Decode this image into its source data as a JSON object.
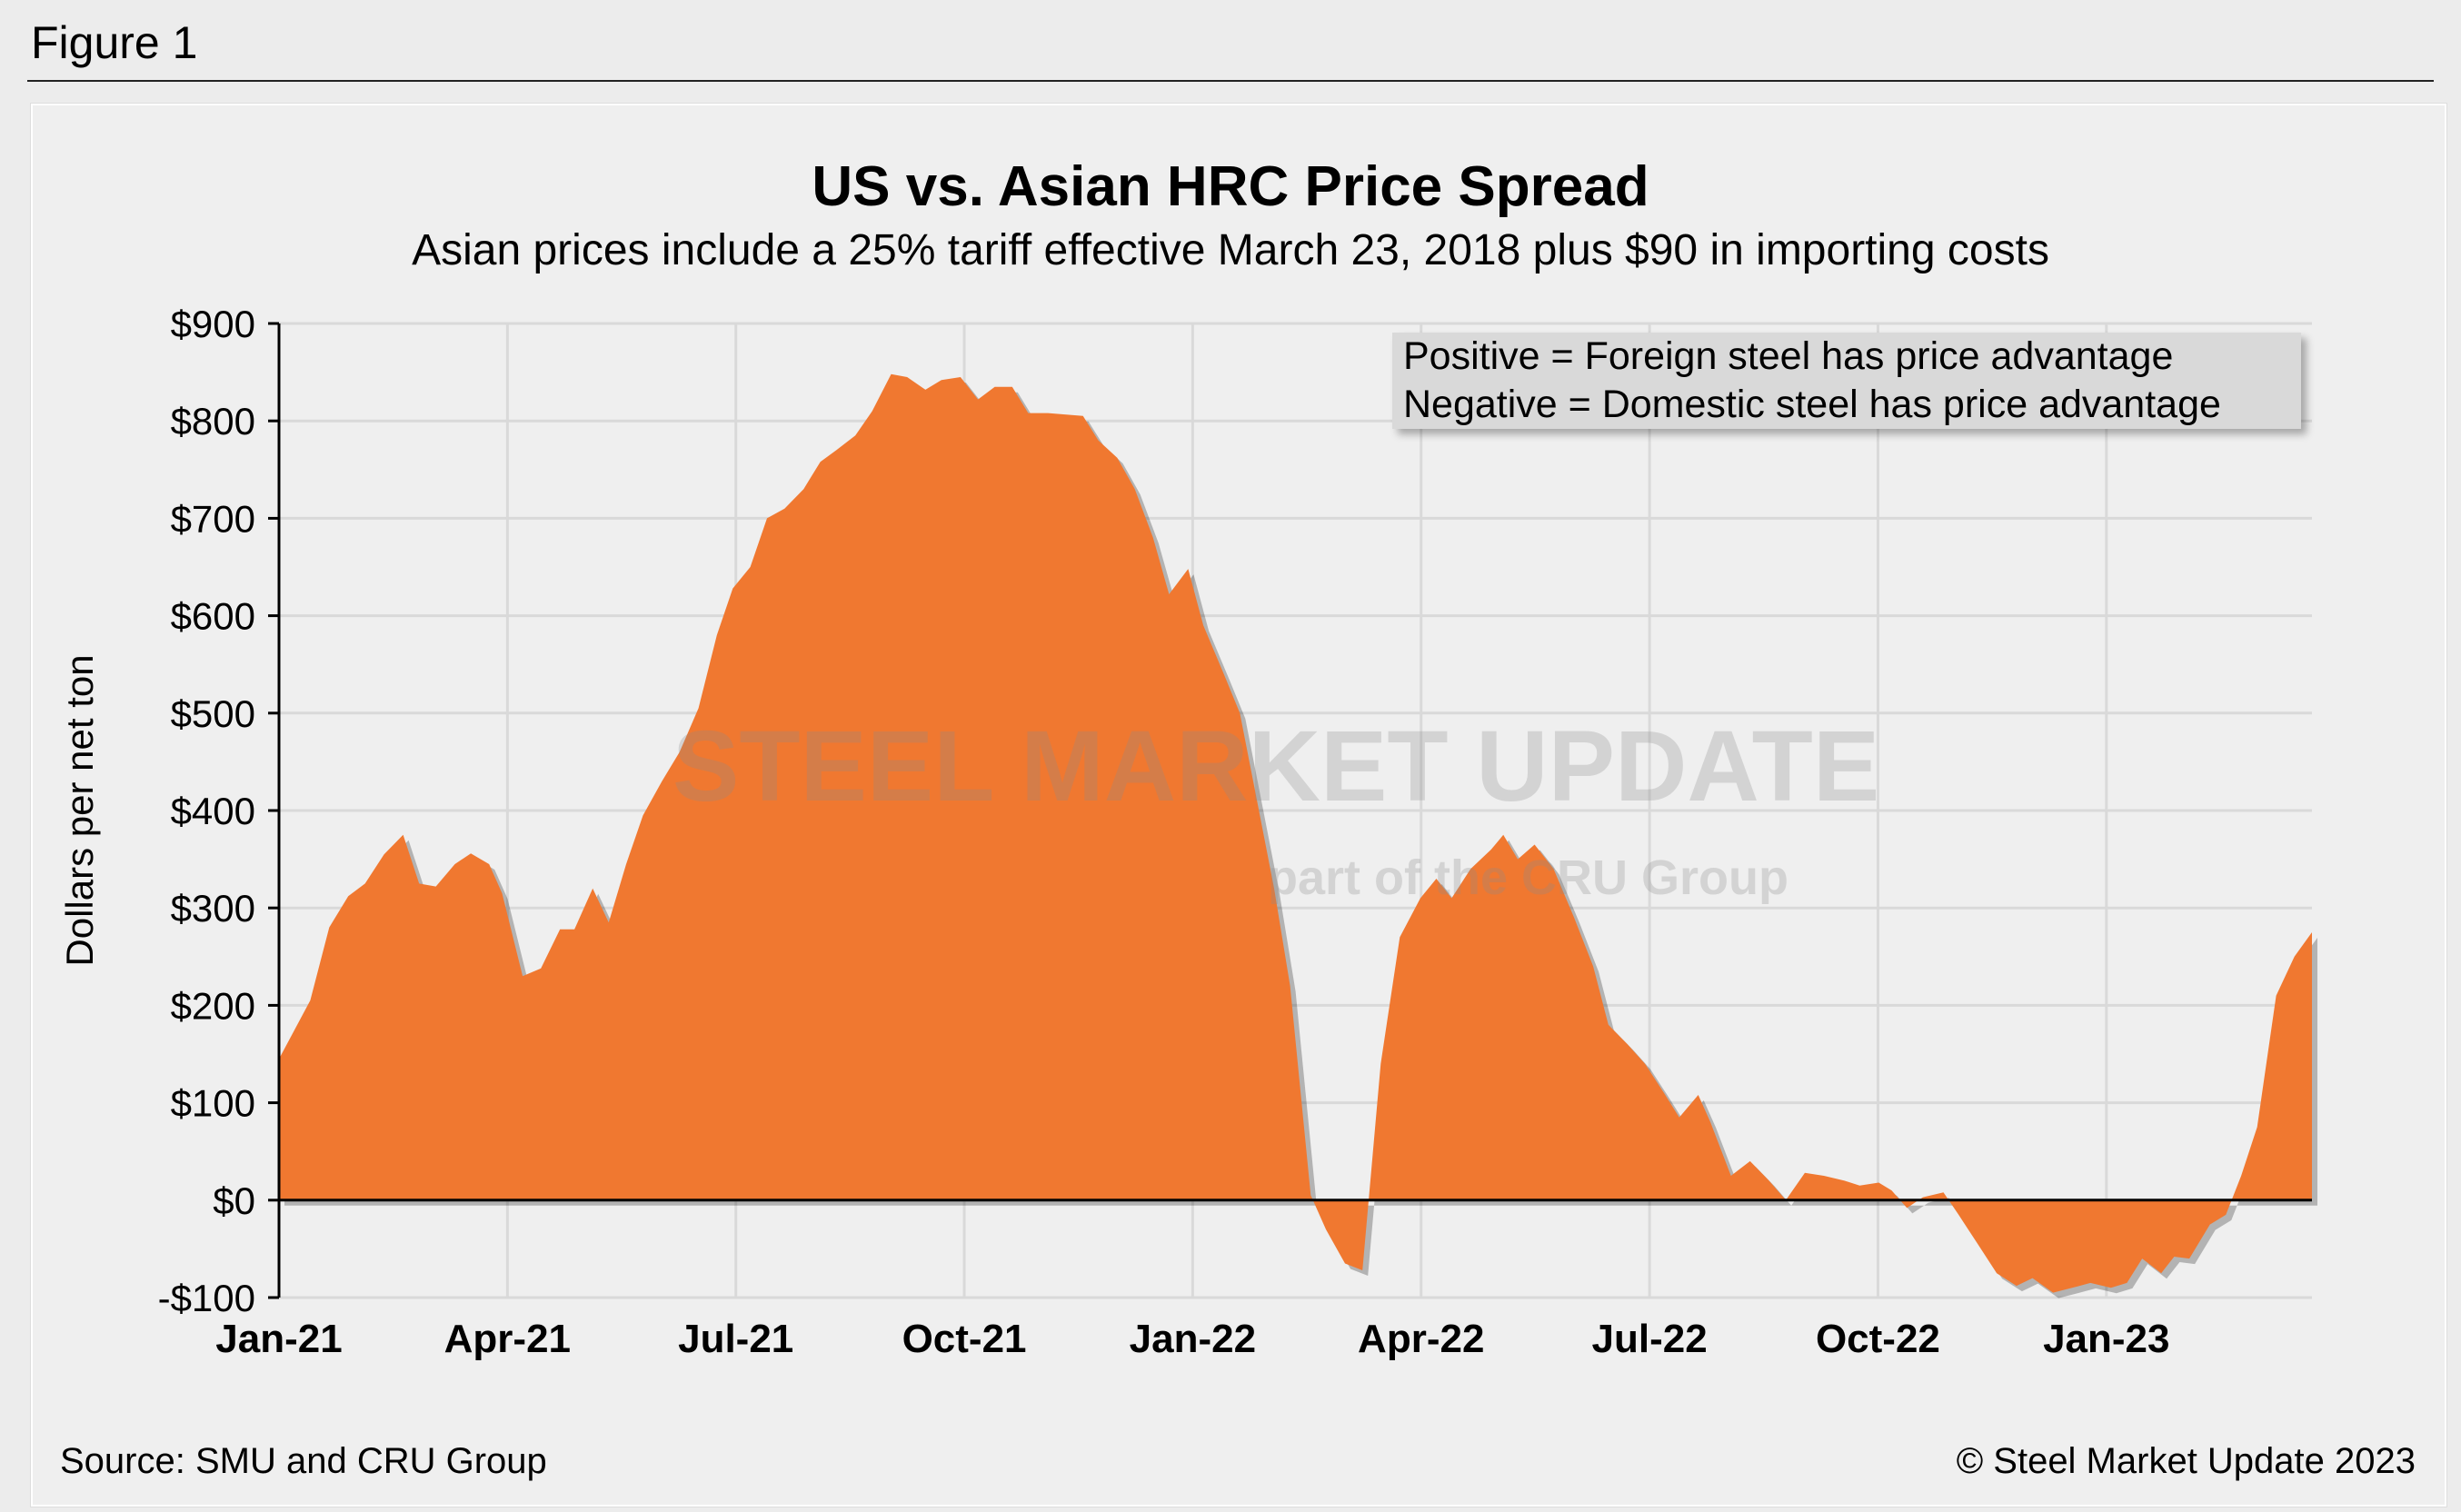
{
  "figure_label": "Figure 1",
  "watermark": {
    "line1": "STEEL MARKET UPDATE",
    "line2": "part of the CRU Group"
  },
  "legend_box": {
    "line1": "Positive = Foreign steel has price advantage",
    "line2": "Negative = Domestic steel has price advantage"
  },
  "source": "Source: SMU and CRU Group",
  "copyright": "© Steel Market Update 2023",
  "colors": {
    "area": "#f07830",
    "grid": "#d9d9d9",
    "background": "#efefef"
  },
  "chart_data": {
    "type": "area",
    "title": "US vs. Asian HRC Price Spread",
    "subtitle": "Asian prices include a 25% tariff effective March 23, 2018 plus $90 in importing costs",
    "xlabel": "",
    "ylabel": "Dollars per net ton",
    "x_units": "months since Jan-21",
    "xlim": [
      0,
      26.7
    ],
    "ylim": [
      -100,
      900
    ],
    "grid": true,
    "x_ticks": [
      {
        "value": 0,
        "label": "Jan-21"
      },
      {
        "value": 3,
        "label": "Apr-21"
      },
      {
        "value": 6,
        "label": "Jul-21"
      },
      {
        "value": 9,
        "label": "Oct-21"
      },
      {
        "value": 12,
        "label": "Jan-22"
      },
      {
        "value": 15,
        "label": "Apr-22"
      },
      {
        "value": 18,
        "label": "Jul-22"
      },
      {
        "value": 21,
        "label": "Oct-22"
      },
      {
        "value": 24,
        "label": "Jan-23"
      }
    ],
    "y_ticks": [
      {
        "value": 900,
        "label": "$900"
      },
      {
        "value": 800,
        "label": "$800"
      },
      {
        "value": 700,
        "label": "$700"
      },
      {
        "value": 600,
        "label": "$600"
      },
      {
        "value": 500,
        "label": "$500"
      },
      {
        "value": 400,
        "label": "$400"
      },
      {
        "value": 300,
        "label": "$300"
      },
      {
        "value": 200,
        "label": "$200"
      },
      {
        "value": 100,
        "label": "$100"
      },
      {
        "value": 0,
        "label": "$0"
      },
      {
        "value": -100,
        "label": "-$100"
      }
    ],
    "series": [
      {
        "name": "US vs. Asian HRC price spread",
        "points": [
          [
            0,
            145
          ],
          [
            0.41,
            205
          ],
          [
            0.66,
            280
          ],
          [
            0.91,
            312
          ],
          [
            1.13,
            325
          ],
          [
            1.38,
            355
          ],
          [
            1.63,
            375
          ],
          [
            1.84,
            325
          ],
          [
            2.06,
            322
          ],
          [
            2.31,
            345
          ],
          [
            2.52,
            356
          ],
          [
            2.76,
            345
          ],
          [
            2.93,
            315
          ],
          [
            3.2,
            230
          ],
          [
            3.44,
            238
          ],
          [
            3.69,
            278
          ],
          [
            3.88,
            278
          ],
          [
            4.12,
            320
          ],
          [
            4.33,
            285
          ],
          [
            4.56,
            345
          ],
          [
            4.78,
            395
          ],
          [
            5.03,
            430
          ],
          [
            5.26,
            460
          ],
          [
            5.51,
            505
          ],
          [
            5.75,
            580
          ],
          [
            5.96,
            628
          ],
          [
            6.19,
            650
          ],
          [
            6.41,
            700
          ],
          [
            6.64,
            710
          ],
          [
            6.89,
            730
          ],
          [
            7.11,
            758
          ],
          [
            7.32,
            770
          ],
          [
            7.57,
            785
          ],
          [
            7.79,
            810
          ],
          [
            8.04,
            848
          ],
          [
            8.25,
            845
          ],
          [
            8.49,
            832
          ],
          [
            8.7,
            842
          ],
          [
            8.95,
            845
          ],
          [
            9.18,
            822
          ],
          [
            9.4,
            835
          ],
          [
            9.63,
            835
          ],
          [
            9.84,
            808
          ],
          [
            10.1,
            808
          ],
          [
            10.56,
            805
          ],
          [
            10.76,
            780
          ],
          [
            11.01,
            762
          ],
          [
            11.24,
            730
          ],
          [
            11.48,
            680
          ],
          [
            11.69,
            622
          ],
          [
            11.94,
            648
          ],
          [
            12.14,
            590
          ],
          [
            12.41,
            540
          ],
          [
            12.62,
            500
          ],
          [
            12.82,
            420
          ],
          [
            13.07,
            320
          ],
          [
            13.28,
            220
          ],
          [
            13.55,
            5
          ],
          [
            13.75,
            -30
          ],
          [
            14.0,
            -65
          ],
          [
            14.23,
            -72
          ],
          [
            14.47,
            140
          ],
          [
            14.72,
            270
          ],
          [
            14.99,
            310
          ],
          [
            15.2,
            330
          ],
          [
            15.4,
            310
          ],
          [
            15.65,
            340
          ],
          [
            15.92,
            360
          ],
          [
            16.08,
            375
          ],
          [
            16.27,
            350
          ],
          [
            16.49,
            365
          ],
          [
            16.74,
            340
          ],
          [
            17.01,
            290
          ],
          [
            17.26,
            240
          ],
          [
            17.46,
            180
          ],
          [
            17.71,
            160
          ],
          [
            17.94,
            140
          ],
          [
            18.19,
            110
          ],
          [
            18.39,
            85
          ],
          [
            18.64,
            108
          ],
          [
            18.8,
            80
          ],
          [
            19.07,
            25
          ],
          [
            19.32,
            40
          ],
          [
            19.57,
            20
          ],
          [
            19.79,
            0
          ],
          [
            20.04,
            28
          ],
          [
            20.29,
            25
          ],
          [
            20.56,
            20
          ],
          [
            20.76,
            15
          ],
          [
            21.01,
            18
          ],
          [
            21.18,
            10
          ],
          [
            21.38,
            -8
          ],
          [
            21.59,
            3
          ],
          [
            21.86,
            8
          ],
          [
            22.06,
            -15
          ],
          [
            22.31,
            -45
          ],
          [
            22.56,
            -75
          ],
          [
            22.82,
            -88
          ],
          [
            23.03,
            -80
          ],
          [
            23.3,
            -95
          ],
          [
            23.55,
            -90
          ],
          [
            23.79,
            -85
          ],
          [
            24.06,
            -90
          ],
          [
            24.27,
            -85
          ],
          [
            24.47,
            -60
          ],
          [
            24.72,
            -75
          ],
          [
            24.89,
            -58
          ],
          [
            25.09,
            -60
          ],
          [
            25.36,
            -25
          ],
          [
            25.57,
            -15
          ],
          [
            25.77,
            25
          ],
          [
            25.98,
            75
          ],
          [
            26.23,
            210
          ],
          [
            26.47,
            250
          ],
          [
            26.7,
            275
          ]
        ]
      }
    ]
  }
}
